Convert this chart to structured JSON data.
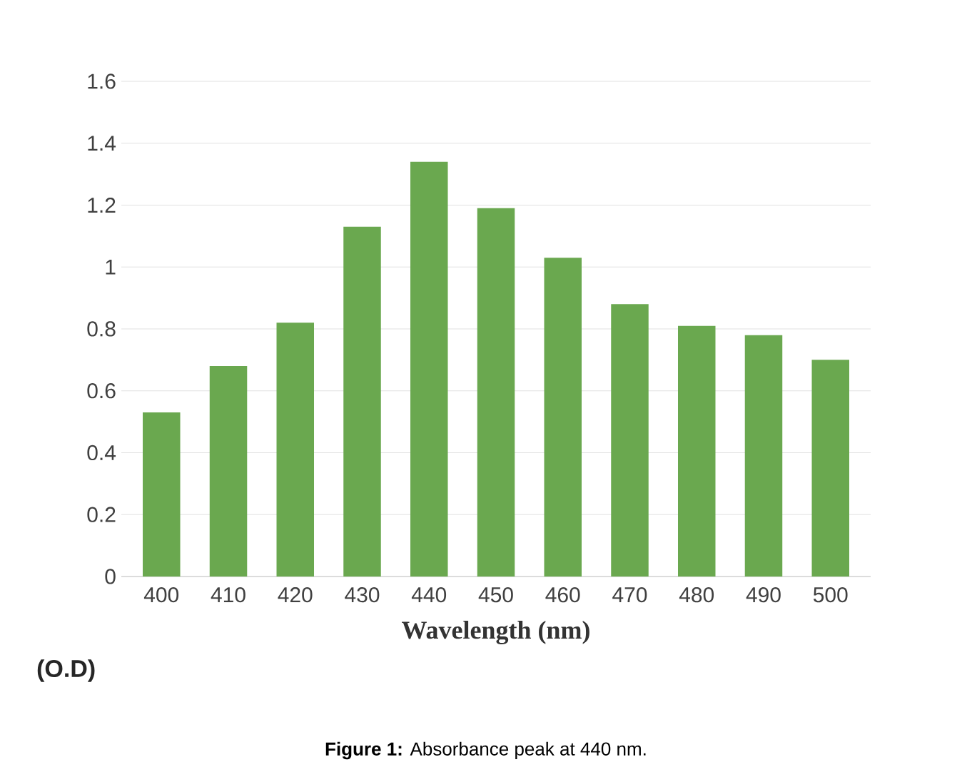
{
  "chart_data": {
    "type": "bar",
    "xlabel": "Wavelength (nm)",
    "ylabel": "(O.D)",
    "categories": [
      "400",
      "410",
      "420",
      "430",
      "440",
      "450",
      "460",
      "470",
      "480",
      "490",
      "500"
    ],
    "values": [
      0.53,
      0.68,
      0.82,
      1.13,
      1.34,
      1.19,
      1.03,
      0.88,
      0.81,
      0.78,
      0.7
    ],
    "color": "#6aa84f",
    "ylim": [
      0,
      1.6
    ],
    "yticks": [
      0,
      0.2,
      0.4,
      0.6,
      0.8,
      1,
      1.2,
      1.4,
      1.6
    ],
    "grid": "y",
    "annotations": [
      "**Figure 1:** Absorbance peak at 440 nm."
    ]
  }
}
